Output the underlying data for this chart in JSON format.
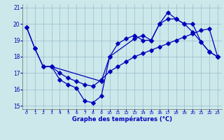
{
  "title": "Graphe des températures (°C)",
  "bg_color": "#cce8ea",
  "line_color": "#0000bb",
  "grid_color": "#99bbcc",
  "xlim": [
    -0.5,
    23.5
  ],
  "ylim": [
    14.8,
    21.2
  ],
  "xticks": [
    0,
    1,
    2,
    3,
    4,
    5,
    6,
    7,
    8,
    9,
    10,
    11,
    12,
    13,
    14,
    15,
    16,
    17,
    18,
    19,
    20,
    21,
    22,
    23
  ],
  "yticks": [
    15,
    16,
    17,
    18,
    19,
    20,
    21
  ],
  "line1_x": [
    0,
    1,
    2,
    3,
    4,
    5,
    6,
    7,
    8,
    9,
    10,
    11,
    12,
    13,
    14,
    15,
    16,
    17,
    18,
    19,
    20,
    21,
    22,
    23
  ],
  "line1_y": [
    19.8,
    18.5,
    17.4,
    17.4,
    16.6,
    16.3,
    16.1,
    15.3,
    15.2,
    15.6,
    18.0,
    18.8,
    19.1,
    19.3,
    19.0,
    19.0,
    20.0,
    20.7,
    20.3,
    20.0,
    19.5,
    18.9,
    18.3,
    18.0
  ],
  "line2_x": [
    0,
    1,
    2,
    3,
    4,
    5,
    6,
    7,
    8,
    9,
    10,
    11,
    12,
    13,
    14,
    15,
    16,
    17,
    18,
    19,
    20,
    21,
    22,
    23
  ],
  "line2_y": [
    19.8,
    18.5,
    17.4,
    17.4,
    17.0,
    16.7,
    16.5,
    16.3,
    16.2,
    16.6,
    17.1,
    17.4,
    17.7,
    18.0,
    18.2,
    18.4,
    18.6,
    18.8,
    19.0,
    19.2,
    19.4,
    19.6,
    19.7,
    18.0
  ],
  "line3_x": [
    3,
    9,
    10,
    13,
    14,
    15,
    16,
    17,
    18,
    19,
    20,
    21,
    22,
    23
  ],
  "line3_y": [
    17.4,
    16.5,
    18.0,
    19.1,
    19.3,
    19.0,
    20.0,
    20.3,
    20.3,
    20.0,
    20.0,
    18.9,
    18.3,
    18.0
  ]
}
